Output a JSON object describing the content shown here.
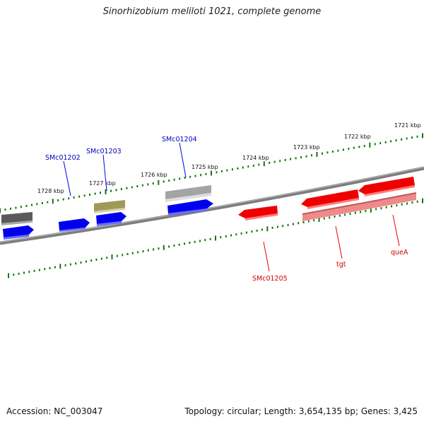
{
  "title": "Sinorhizobium meliloti 1021, complete genome",
  "footer": {
    "accession": "Accession: NC_003047",
    "summary": "Topology: circular; Length: 3,654,135 bp; Genes: 3,425"
  },
  "scale_labels": [
    "1721 kbp",
    "1722 kbp",
    "1723 kbp",
    "1724 kbp",
    "1725 kbp",
    "1726 kbp",
    "1727 kbp",
    "1728 kbp"
  ],
  "colors": {
    "forward_strand": "#0000ee",
    "reverse_strand": "#ee0000",
    "backbone": "#777777",
    "scale_ticks": "#117711",
    "rna_gene": "#a09a5a"
  },
  "genes": [
    {
      "name": "SMc01204",
      "strand": "forward"
    },
    {
      "name": "SMc01203",
      "strand": "forward"
    },
    {
      "name": "SMc01202",
      "strand": "forward"
    },
    {
      "name": "SMc01205",
      "strand": "reverse"
    },
    {
      "name": "tgt",
      "strand": "reverse"
    },
    {
      "name": "queA",
      "strand": "reverse"
    }
  ]
}
